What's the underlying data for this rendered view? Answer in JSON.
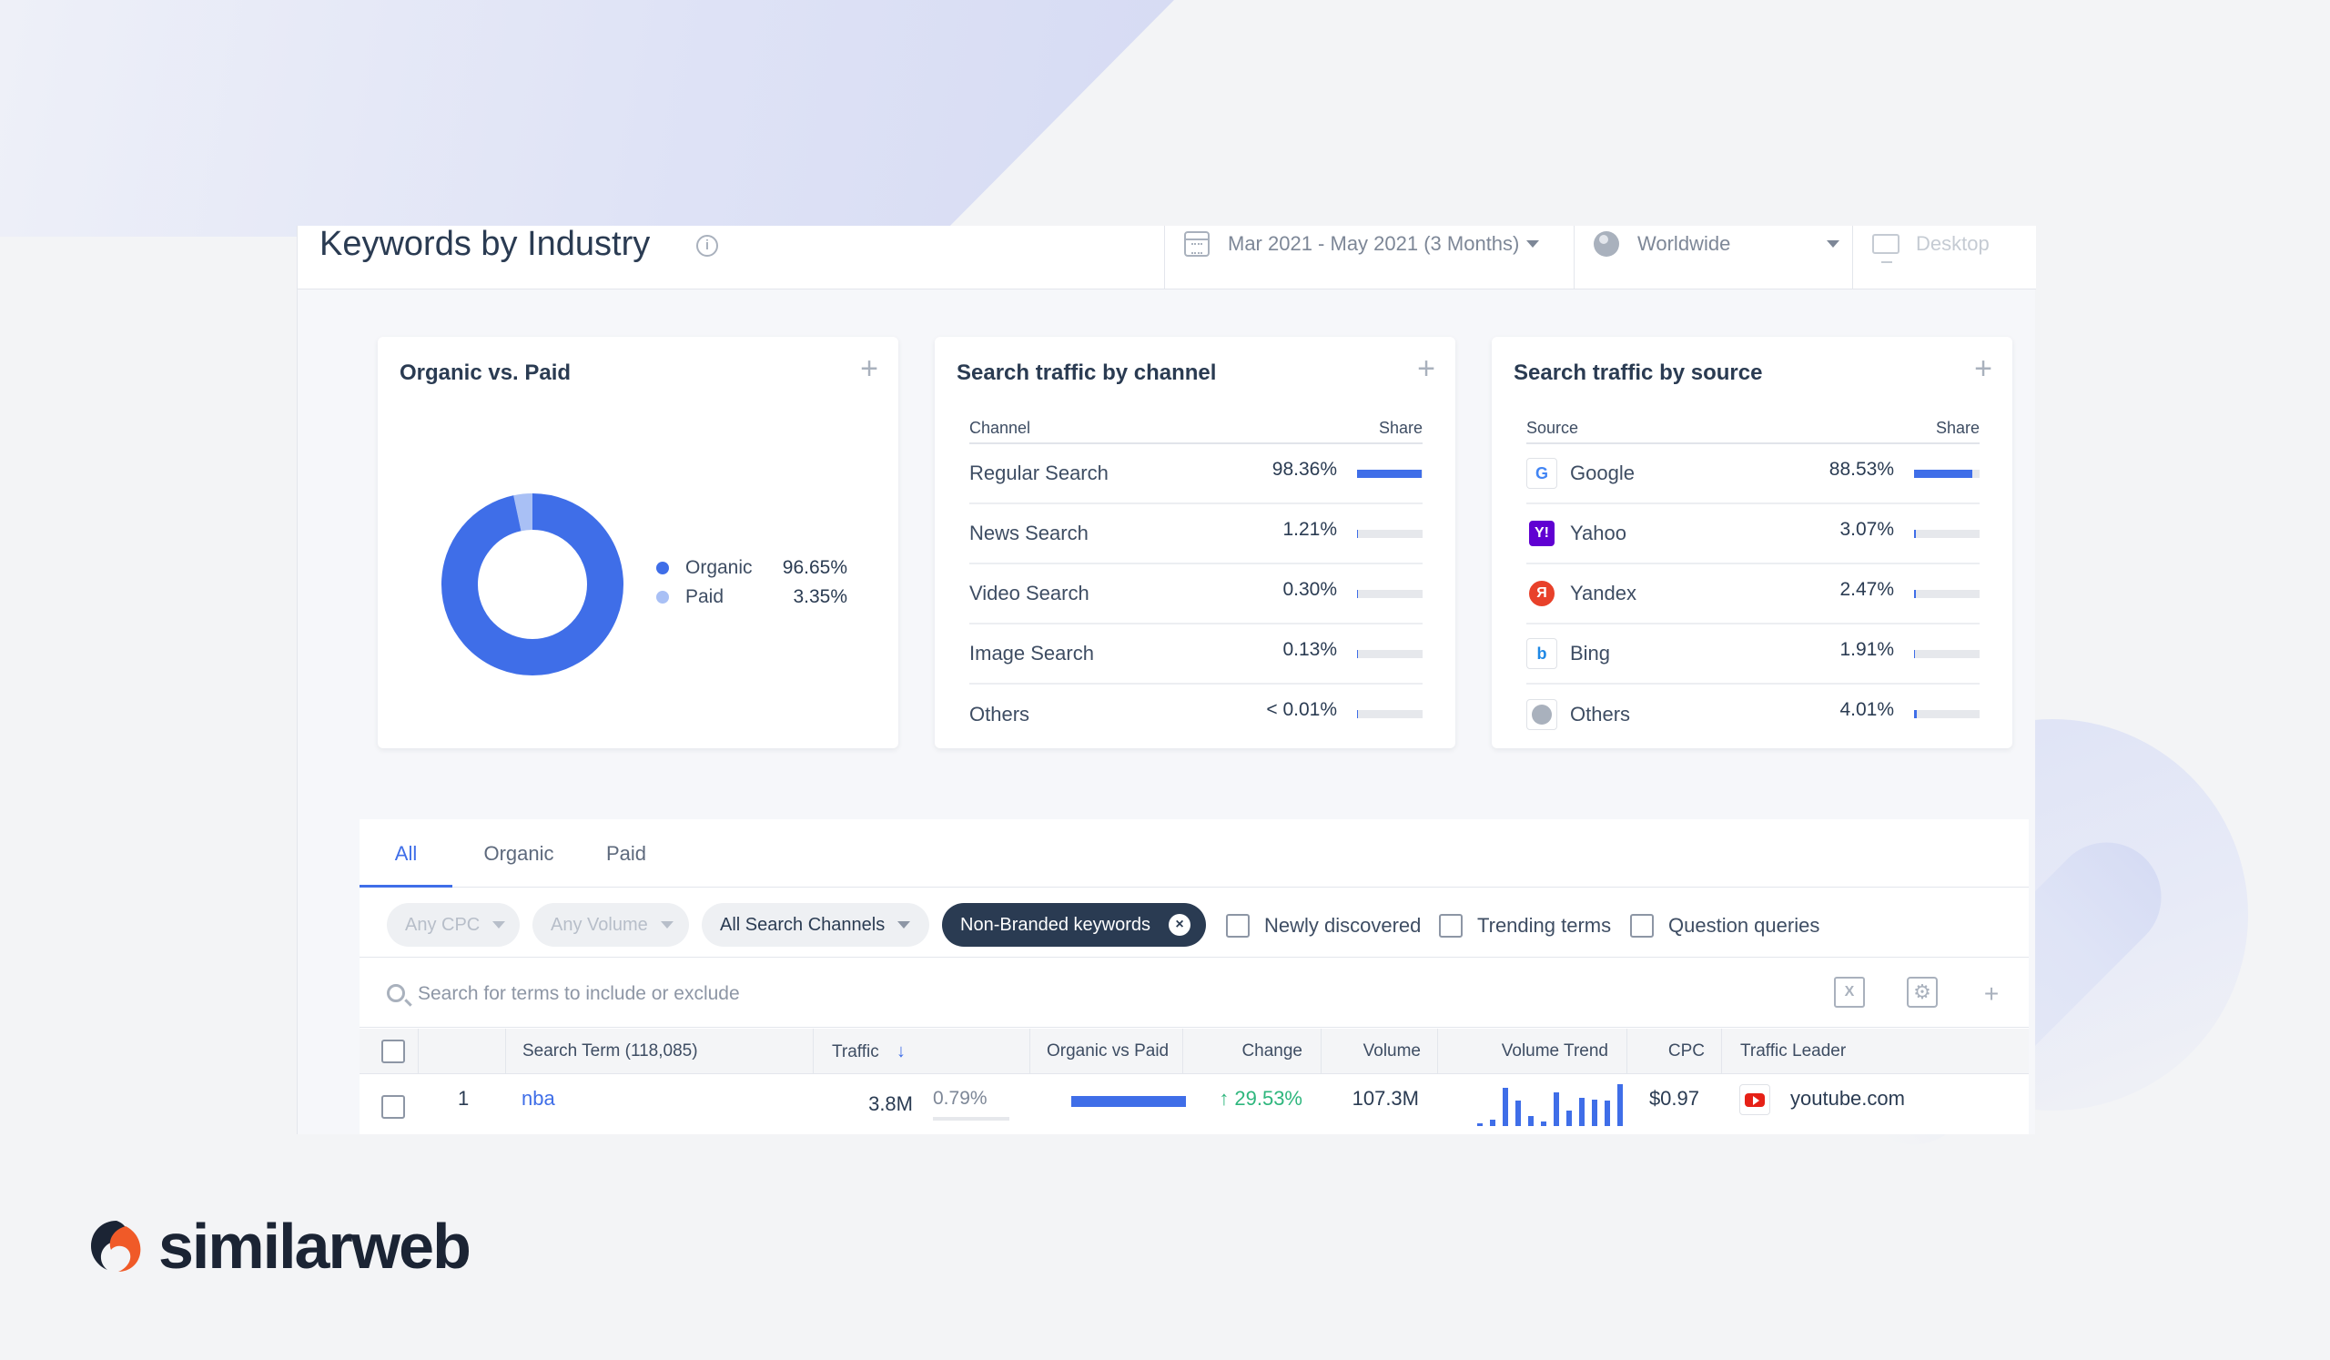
{
  "header": {
    "title": "Keywords by Industry",
    "date_range": "Mar 2021 - May 2021 (3 Months)",
    "geo": "Worldwide",
    "device": "Desktop"
  },
  "organic_vs_paid": {
    "title": "Organic vs. Paid",
    "items": [
      {
        "label": "Organic",
        "value": "96.65%",
        "share": 96.65,
        "color": "#3f6ee8"
      },
      {
        "label": "Paid",
        "value": "3.35%",
        "share": 3.35,
        "color": "#a9c0f5"
      }
    ]
  },
  "channel": {
    "title": "Search traffic by channel",
    "col_name": "Channel",
    "col_share": "Share",
    "rows": [
      {
        "name": "Regular Search",
        "value": "98.36%",
        "share": 98.36
      },
      {
        "name": "News Search",
        "value": "1.21%",
        "share": 1.21
      },
      {
        "name": "Video Search",
        "value": "0.30%",
        "share": 0.3
      },
      {
        "name": "Image Search",
        "value": "0.13%",
        "share": 0.13
      },
      {
        "name": "Others",
        "value": "< 0.01%",
        "share": 0.01
      }
    ]
  },
  "source": {
    "title": "Search traffic by source",
    "col_name": "Source",
    "col_share": "Share",
    "rows": [
      {
        "name": "Google",
        "value": "88.53%",
        "share": 88.53,
        "icon": "google-icon"
      },
      {
        "name": "Yahoo",
        "value": "3.07%",
        "share": 3.07,
        "icon": "yahoo-icon"
      },
      {
        "name": "Yandex",
        "value": "2.47%",
        "share": 2.47,
        "icon": "yandex-icon"
      },
      {
        "name": "Bing",
        "value": "1.91%",
        "share": 1.91,
        "icon": "bing-icon"
      },
      {
        "name": "Others",
        "value": "4.01%",
        "share": 4.01,
        "icon": "globe-icon"
      }
    ]
  },
  "tabs": [
    "All",
    "Organic",
    "Paid"
  ],
  "filters": {
    "cpc": "Any CPC",
    "volume": "Any Volume",
    "channels": "All Search Channels",
    "branded": "Non-Branded keywords",
    "newly": "Newly discovered",
    "trending": "Trending terms",
    "question": "Question queries"
  },
  "search": {
    "placeholder": "Search for terms to include or exclude"
  },
  "table": {
    "headers": {
      "term": "Search Term (118,085)",
      "traffic": "Traffic",
      "ovp": "Organic vs Paid",
      "change": "Change",
      "volume": "Volume",
      "trend": "Volume Trend",
      "cpc": "CPC",
      "leader": "Traffic Leader"
    },
    "rows": [
      {
        "rank": "1",
        "term": "nba",
        "traffic": "3.8M",
        "traffic_share": "0.79%",
        "organic_share": 100,
        "change": "29.53%",
        "volume": "107.3M",
        "trend": [
          3,
          8,
          46,
          30,
          12,
          5,
          40,
          18,
          34,
          32,
          30,
          50
        ],
        "cpc": "$0.97",
        "leader": "youtube.com"
      }
    ]
  },
  "brand": {
    "name": "similarweb"
  }
}
